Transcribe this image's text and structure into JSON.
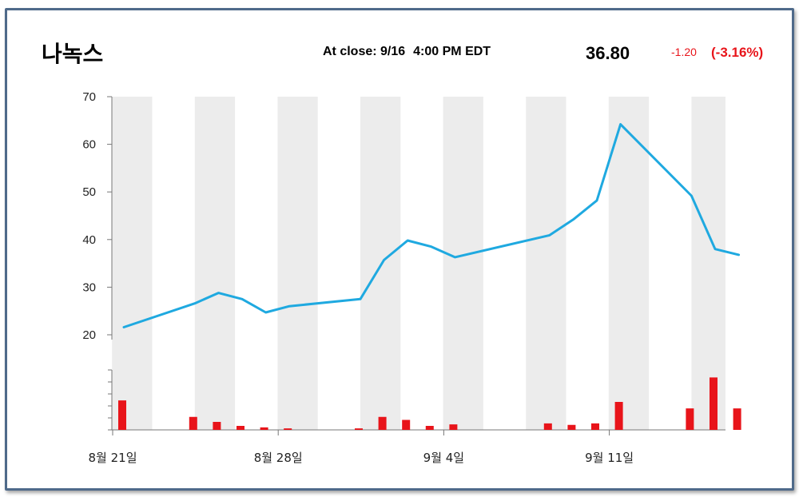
{
  "header": {
    "title": "나녹스",
    "close_label": "At close: 9/16",
    "close_time": "4:00 PM EDT",
    "price": "36.80",
    "change": "-1.20",
    "change_pct": "(-3.16%)"
  },
  "colors": {
    "line": "#1fa9e0",
    "volume_bar": "#e8141a",
    "band": "#ececec",
    "change_text": "#e8141a",
    "frame": "#4f6a8a"
  },
  "chart_data": {
    "type": "line",
    "title": "",
    "ylim": [
      20,
      70
    ],
    "yticks": [
      20,
      30,
      40,
      50,
      60,
      70
    ],
    "x_tick_labels": [
      "8월 21일",
      "8월 28일",
      "9월 4일",
      "9월 11일"
    ],
    "x_tick_dates": [
      "2020-08-21",
      "2020-08-28",
      "2020-09-04",
      "2020-09-11"
    ],
    "grid": false,
    "weekend_bands": true,
    "series": [
      {
        "values": [
          {
            "date": "2020-08-21",
            "price": 21.6
          },
          {
            "date": "2020-08-24",
            "price": 26.6
          },
          {
            "date": "2020-08-25",
            "price": 28.8
          },
          {
            "date": "2020-08-26",
            "price": 27.5
          },
          {
            "date": "2020-08-27",
            "price": 24.7
          },
          {
            "date": "2020-08-28",
            "price": 26.0
          },
          {
            "date": "2020-08-31",
            "price": 27.5
          },
          {
            "date": "2020-09-01",
            "price": 35.7
          },
          {
            "date": "2020-09-02",
            "price": 39.8
          },
          {
            "date": "2020-09-03",
            "price": 38.5
          },
          {
            "date": "2020-09-04",
            "price": 36.3
          },
          {
            "date": "2020-09-08",
            "price": 40.9
          },
          {
            "date": "2020-09-09",
            "price": 44.2
          },
          {
            "date": "2020-09-10",
            "price": 48.2
          },
          {
            "date": "2020-09-11",
            "price": 64.2
          },
          {
            "date": "2020-09-14",
            "price": 49.2
          },
          {
            "date": "2020-09-15",
            "price": 38.0
          },
          {
            "date": "2020-09-16",
            "price": 36.8
          }
        ]
      }
    ],
    "volume": {
      "type": "bar",
      "y_axis_labels": false,
      "values": [
        {
          "date": "2020-08-21",
          "volume": 5.9
        },
        {
          "date": "2020-08-24",
          "volume": 2.6
        },
        {
          "date": "2020-08-25",
          "volume": 1.6
        },
        {
          "date": "2020-08-26",
          "volume": 0.8
        },
        {
          "date": "2020-08-27",
          "volume": 0.5
        },
        {
          "date": "2020-08-28",
          "volume": 0.3
        },
        {
          "date": "2020-08-31",
          "volume": 0.3
        },
        {
          "date": "2020-09-01",
          "volume": 2.6
        },
        {
          "date": "2020-09-02",
          "volume": 2.0
        },
        {
          "date": "2020-09-03",
          "volume": 0.8
        },
        {
          "date": "2020-09-04",
          "volume": 1.1
        },
        {
          "date": "2020-09-08",
          "volume": 1.3
        },
        {
          "date": "2020-09-09",
          "volume": 1.0
        },
        {
          "date": "2020-09-10",
          "volume": 1.3
        },
        {
          "date": "2020-09-11",
          "volume": 5.6
        },
        {
          "date": "2020-09-14",
          "volume": 4.3
        },
        {
          "date": "2020-09-15",
          "volume": 10.5
        },
        {
          "date": "2020-09-16",
          "volume": 4.3
        }
      ]
    }
  }
}
